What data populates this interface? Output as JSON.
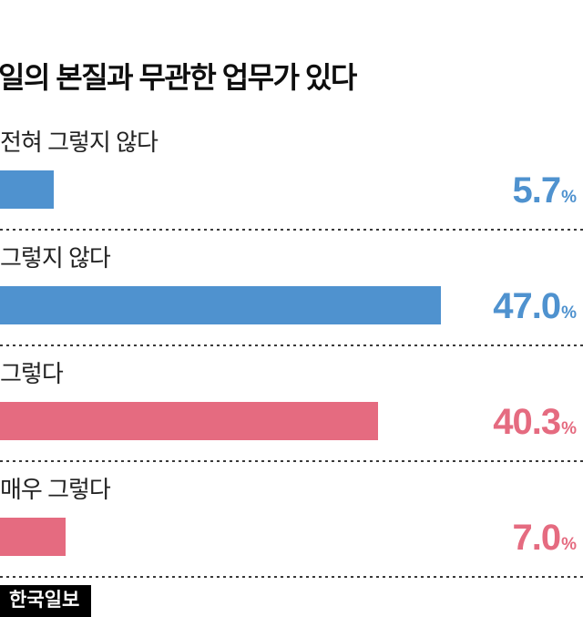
{
  "chart_data": {
    "type": "bar",
    "orientation": "horizontal",
    "title": "일의 본질과 무관한 업무가 있다",
    "categories": [
      "전혀 그렇지 않다",
      "그렇지 않다",
      "그렇다",
      "매우 그렇다"
    ],
    "values": [
      5.7,
      47.0,
      40.3,
      7.0
    ],
    "value_labels": [
      "5.7",
      "47.0",
      "40.3",
      "7.0"
    ],
    "unit": "%",
    "bar_colors": [
      "#4f92cf",
      "#4f92cf",
      "#e56b80",
      "#e56b80"
    ],
    "xlim": [
      0,
      50
    ],
    "grid": "dashed row separators",
    "legend": "none"
  },
  "colors": {
    "blue": "#4f92cf",
    "pink": "#e56b80",
    "title_text": "#0e0e0e",
    "label_text": "#222222",
    "separator": "#3a3a3a"
  },
  "footer": {
    "logo_text": "한국일보"
  }
}
